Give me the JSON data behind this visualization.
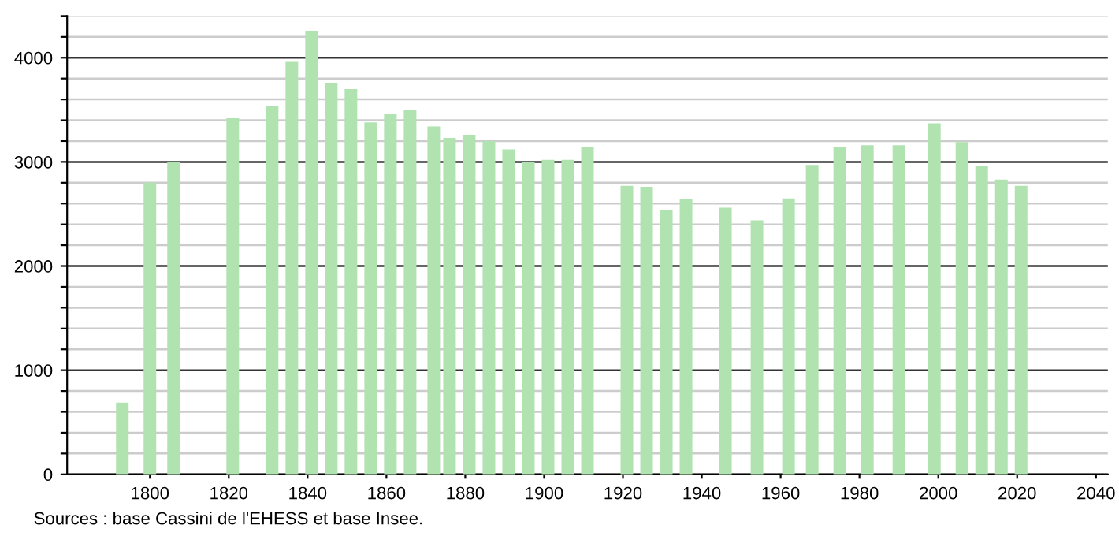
{
  "chart_data": {
    "type": "bar",
    "x": [
      1793,
      1800,
      1806,
      1821,
      1831,
      1836,
      1841,
      1846,
      1851,
      1856,
      1861,
      1866,
      1872,
      1876,
      1881,
      1886,
      1891,
      1896,
      1901,
      1906,
      1911,
      1921,
      1926,
      1931,
      1936,
      1946,
      1954,
      1962,
      1968,
      1975,
      1982,
      1990,
      1999,
      2006,
      2011,
      2016,
      2021
    ],
    "values": [
      690,
      2800,
      3000,
      3420,
      3540,
      3960,
      4260,
      3760,
      3700,
      3380,
      3460,
      3500,
      3340,
      3230,
      3260,
      3200,
      3120,
      3000,
      3020,
      3020,
      3140,
      2770,
      2760,
      2540,
      2640,
      2560,
      2440,
      2650,
      2970,
      3140,
      3160,
      3160,
      3370,
      3190,
      2960,
      2830,
      2770
    ],
    "color": "#b0e3b0",
    "xlim": [
      1779,
      2043
    ],
    "xticks": [
      1800,
      1820,
      1840,
      1860,
      1880,
      1900,
      1920,
      1940,
      1960,
      1980,
      2000,
      2020,
      2040
    ],
    "ylim": [
      0,
      4400
    ],
    "yticks": [
      0,
      {
        "value": 200,
        "label": null
      },
      {
        "value": 400,
        "label": null
      },
      {
        "value": 600,
        "label": null
      },
      {
        "value": 800,
        "label": null
      },
      1000,
      {
        "value": 1200,
        "label": null
      },
      {
        "value": 1400,
        "label": null
      },
      {
        "value": 1600,
        "label": null
      },
      {
        "value": 1800,
        "label": null
      },
      2000,
      {
        "value": 2200,
        "label": null
      },
      {
        "value": 2400,
        "label": null
      },
      {
        "value": 2600,
        "label": null
      },
      {
        "value": 2800,
        "label": null
      },
      3000,
      {
        "value": 3200,
        "label": null
      },
      {
        "value": 3400,
        "label": null
      },
      {
        "value": 3600,
        "label": null
      },
      {
        "value": 3800,
        "label": null
      },
      4000,
      {
        "value": 4200,
        "label": null
      },
      {
        "value": 4400,
        "label": null
      }
    ],
    "grid": "y",
    "annotations": [
      "Sources : base Cassini de l'EHESS et base Insee."
    ]
  }
}
